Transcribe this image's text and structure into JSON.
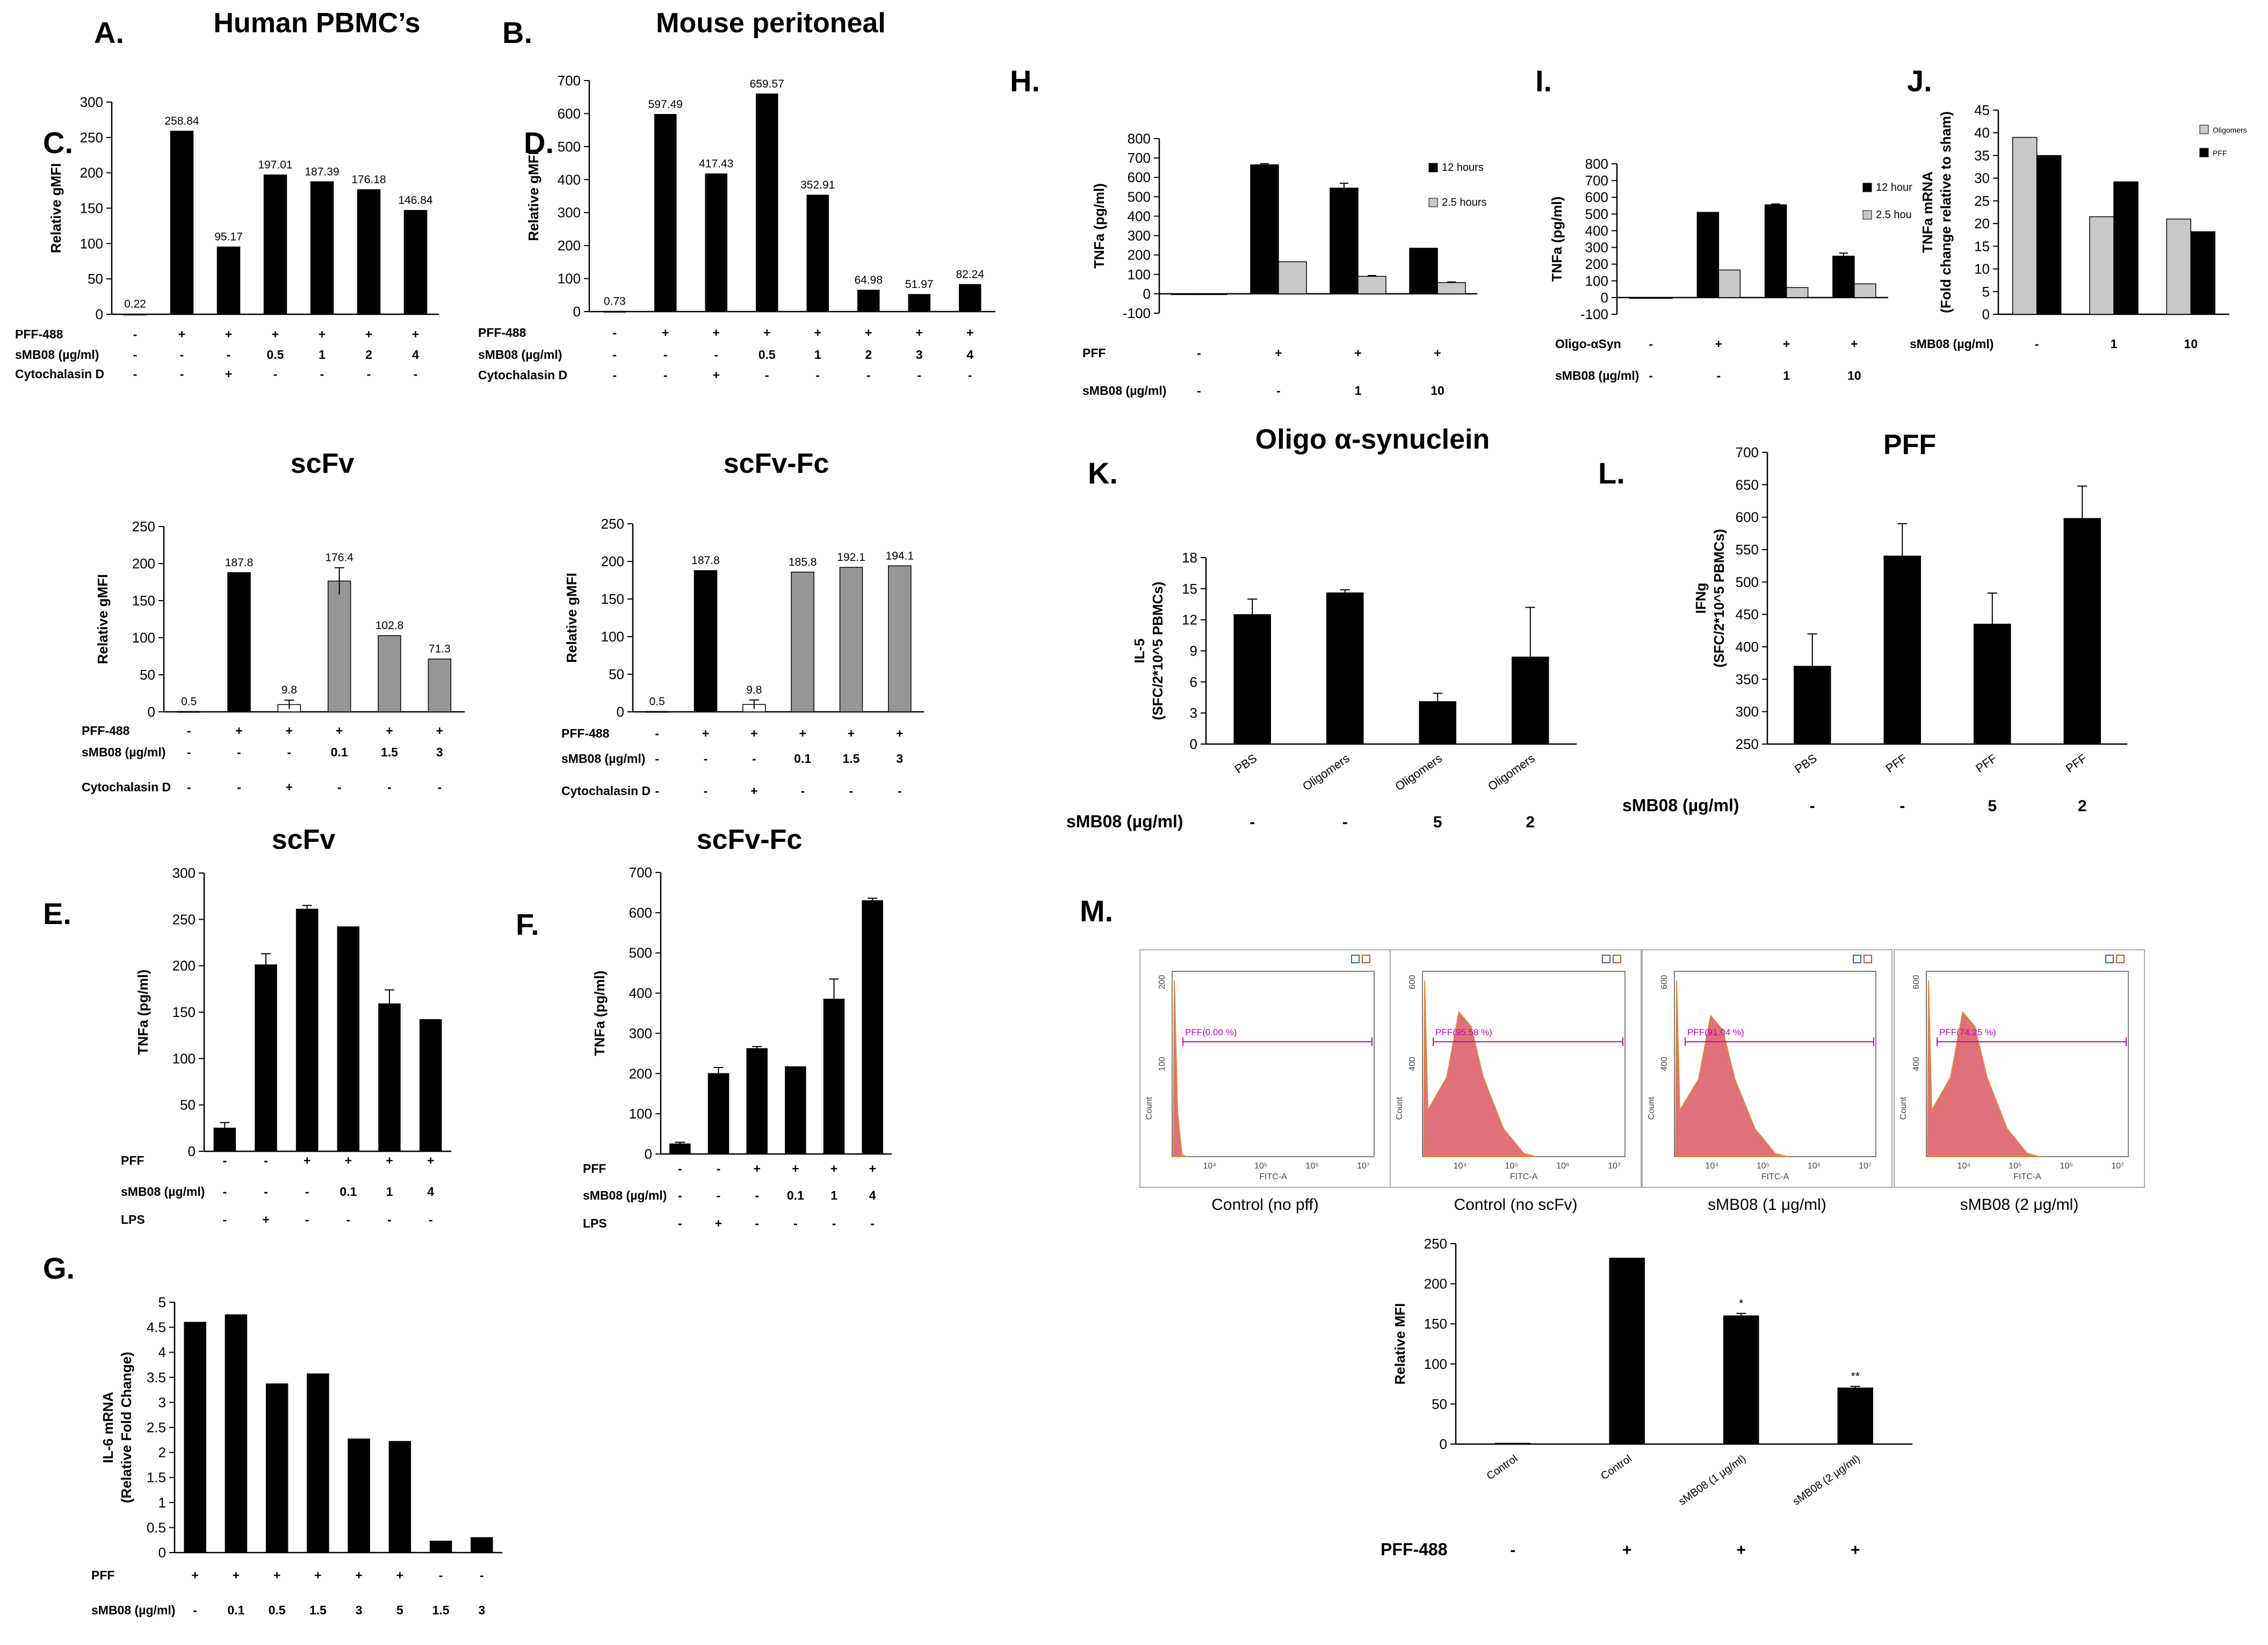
{
  "colors": {
    "black": "#000000",
    "gray": "#969696",
    "lightgray": "#c8c8c8",
    "white": "#ffffff",
    "flow_fill": "#e0707a",
    "flow_edge": "#e08a38",
    "gate": "#c200c2"
  },
  "chart_data": [
    {
      "id": "A",
      "type": "bar",
      "panel_label": "A.",
      "title": "Human PBMC’s",
      "ylabel": "Relative gMFI",
      "ylim": [
        0,
        300
      ],
      "yticks": [
        0,
        50,
        100,
        150,
        200,
        250,
        300
      ],
      "values": [
        0.22,
        258.84,
        95.17,
        197.01,
        187.39,
        176.18,
        146.84
      ],
      "data_labels": [
        "0.22",
        "258.84",
        "95.17",
        "197.01",
        "187.39",
        "176.18",
        "146.84"
      ],
      "bar_colors": [
        "black",
        "black",
        "black",
        "black",
        "black",
        "black",
        "black"
      ],
      "conditions": [
        {
          "label": "PFF-488",
          "values": [
            "-",
            "+",
            "+",
            "+",
            "+",
            "+",
            "+"
          ]
        },
        {
          "label": "sMB08 (µg/ml)",
          "values": [
            "-",
            "-",
            "-",
            "0.5",
            "1",
            "2",
            "4"
          ]
        },
        {
          "label": "Cytochalasin D",
          "values": [
            "-",
            "-",
            "+",
            "-",
            "-",
            "-",
            "-"
          ]
        }
      ]
    },
    {
      "id": "B",
      "type": "bar",
      "panel_label": "B.",
      "title": "Mouse peritoneal",
      "ylabel": "Relative gMFI",
      "ylim": [
        0,
        700
      ],
      "yticks": [
        0,
        100,
        200,
        300,
        400,
        500,
        600,
        700
      ],
      "values": [
        0.73,
        597.49,
        417.43,
        659.57,
        352.91,
        64.98,
        51.97,
        82.24
      ],
      "data_labels": [
        "0.73",
        "597.49",
        "417.43",
        "659.57",
        "352.91",
        "64.98",
        "51.97",
        "82.24"
      ],
      "bar_colors": [
        "black",
        "black",
        "black",
        "black",
        "black",
        "black",
        "black",
        "black"
      ],
      "conditions": [
        {
          "label": "PFF-488",
          "values": [
            "-",
            "+",
            "+",
            "+",
            "+",
            "+",
            "+",
            "+"
          ]
        },
        {
          "label": "sMB08 (µg/ml)",
          "values": [
            "-",
            "-",
            "-",
            "0.5",
            "1",
            "2",
            "3",
            "4"
          ]
        },
        {
          "label": "Cytochalasin D",
          "values": [
            "-",
            "-",
            "+",
            "-",
            "-",
            "-",
            "-",
            "-"
          ]
        }
      ]
    },
    {
      "id": "C",
      "type": "bar",
      "panel_label": "C.",
      "title": "scFv",
      "ylabel": "Relative gMFI",
      "ylim": [
        0,
        250
      ],
      "yticks": [
        0,
        50,
        100,
        150,
        200,
        250
      ],
      "values": [
        0.5,
        187.8,
        9.8,
        176.4,
        102.8,
        71.3
      ],
      "errors": [
        0,
        0,
        6,
        18,
        0,
        0
      ],
      "data_labels": [
        "0.5",
        "187.8",
        "9.8",
        "176.4",
        "102.8",
        "71.3"
      ],
      "bar_colors": [
        "black",
        "black",
        "white",
        "gray",
        "gray",
        "gray"
      ],
      "conditions": [
        {
          "label": "PFF-488",
          "values": [
            "-",
            "+",
            "+",
            "+",
            "+",
            "+"
          ]
        },
        {
          "label": "sMB08 (µg/ml)",
          "values": [
            "-",
            "-",
            "-",
            "0.1",
            "1.5",
            "3"
          ]
        },
        {
          "label": "Cytochalasin D",
          "values": [
            "-",
            "-",
            "+",
            "-",
            "-",
            "-"
          ]
        }
      ]
    },
    {
      "id": "D",
      "type": "bar",
      "panel_label": "D.",
      "title": "scFv-Fc",
      "ylabel": "Relative gMFI",
      "ylim": [
        0,
        250
      ],
      "yticks": [
        0,
        50,
        100,
        150,
        200,
        250
      ],
      "values": [
        0.5,
        187.8,
        9.8,
        185.8,
        192.1,
        194.1
      ],
      "errors": [
        0,
        0,
        6,
        0,
        0,
        0
      ],
      "data_labels": [
        "0.5",
        "187.8",
        "9.8",
        "185.8",
        "192.1",
        "194.1"
      ],
      "bar_colors": [
        "black",
        "black",
        "white",
        "gray",
        "gray",
        "gray"
      ],
      "conditions": [
        {
          "label": "PFF-488",
          "values": [
            "-",
            "+",
            "+",
            "+",
            "+",
            "+"
          ]
        },
        {
          "label": "sMB08 (µg/ml)",
          "values": [
            "-",
            "-",
            "-",
            "0.1",
            "1.5",
            "3"
          ]
        },
        {
          "label": "Cytochalasin D",
          "values": [
            "-",
            "-",
            "+",
            "-",
            "-",
            "-"
          ]
        }
      ]
    },
    {
      "id": "E",
      "type": "bar",
      "panel_label": "E.",
      "title": "scFv",
      "ylabel": "TNFa (pg/ml)",
      "ylim": [
        0,
        300
      ],
      "yticks": [
        0,
        50,
        100,
        150,
        200,
        250,
        300
      ],
      "values": [
        25,
        201,
        261,
        242,
        159,
        142
      ],
      "errors": [
        6,
        12,
        4,
        0,
        15,
        0
      ],
      "bar_colors": [
        "black",
        "black",
        "black",
        "black",
        "black",
        "black"
      ],
      "conditions": [
        {
          "label": "PFF",
          "values": [
            "-",
            "-",
            "+",
            "+",
            "+",
            "+"
          ]
        },
        {
          "label": "sMB08 (µg/ml)",
          "values": [
            "-",
            "-",
            "-",
            "0.1",
            "1",
            "4"
          ]
        },
        {
          "label": "LPS",
          "values": [
            "-",
            "+",
            "-",
            "-",
            "-",
            "-"
          ]
        }
      ]
    },
    {
      "id": "F",
      "type": "bar",
      "panel_label": "F.",
      "title": "scFv-Fc",
      "ylabel": "TNFa (pg/ml)",
      "ylim": [
        0,
        700
      ],
      "yticks": [
        0,
        100,
        200,
        300,
        400,
        500,
        600,
        700
      ],
      "values": [
        25,
        200,
        262,
        217,
        385,
        630
      ],
      "errors": [
        4,
        15,
        5,
        0,
        50,
        6
      ],
      "bar_colors": [
        "black",
        "black",
        "black",
        "black",
        "black",
        "black"
      ],
      "conditions": [
        {
          "label": "PFF",
          "values": [
            "-",
            "-",
            "+",
            "+",
            "+",
            "+"
          ]
        },
        {
          "label": "sMB08 (µg/ml)",
          "values": [
            "-",
            "-",
            "-",
            "0.1",
            "1",
            "4"
          ]
        },
        {
          "label": "LPS",
          "values": [
            "-",
            "+",
            "-",
            "-",
            "-",
            "-"
          ]
        }
      ]
    },
    {
      "id": "G",
      "type": "bar",
      "panel_label": "G.",
      "title": "",
      "ylabel": "IL-6 mRNA",
      "ylabel2": "(Relative  Fold Change)",
      "ylim": [
        0,
        5
      ],
      "yticks": [
        0,
        0.5,
        1,
        1.5,
        2,
        2.5,
        3,
        3.5,
        4,
        4.5,
        5
      ],
      "values": [
        4.6,
        4.75,
        3.37,
        3.57,
        2.27,
        2.22,
        0.23,
        0.3
      ],
      "bar_colors": [
        "black",
        "black",
        "black",
        "black",
        "black",
        "black",
        "black",
        "black"
      ],
      "conditions": [
        {
          "label": "PFF",
          "values": [
            "+",
            "+",
            "+",
            "+",
            "+",
            "+",
            "-",
            "-"
          ]
        },
        {
          "label": "sMB08 (µg/ml)",
          "values": [
            "-",
            "0.1",
            "0.5",
            "1.5",
            "3",
            "5",
            "1.5",
            "3"
          ]
        }
      ]
    },
    {
      "id": "H",
      "type": "bar",
      "panel_label": "H.",
      "title": "",
      "ylabel": "TNFa (pg/ml)",
      "ylim": [
        -100,
        800
      ],
      "yticks": [
        -100,
        0,
        100,
        200,
        300,
        400,
        500,
        600,
        700,
        800
      ],
      "series": [
        {
          "name": "12 hours",
          "color": "black",
          "values": [
            0,
            665,
            545,
            235
          ],
          "errors": [
            0,
            6,
            25,
            0
          ]
        },
        {
          "name": "2.5 hours",
          "color": "lightgray",
          "values": [
            0,
            165,
            90,
            58
          ],
          "errors": [
            0,
            0,
            4,
            3
          ]
        }
      ],
      "conditions": [
        {
          "label": "PFF",
          "values": [
            "-",
            "+",
            "+",
            "+"
          ]
        },
        {
          "label": "sMB08 (µg/ml)",
          "values": [
            "-",
            "-",
            "1",
            "10"
          ]
        }
      ]
    },
    {
      "id": "I",
      "type": "bar",
      "panel_label": "I.",
      "title": "",
      "ylabel": "TNFa (pg/ml)",
      "ylim": [
        -100,
        800
      ],
      "yticks": [
        -100,
        0,
        100,
        200,
        300,
        400,
        500,
        600,
        700,
        800
      ],
      "series": [
        {
          "name": "12 hour",
          "color": "black",
          "values": [
            0,
            510,
            555,
            248
          ],
          "errors": [
            0,
            0,
            5,
            18
          ]
        },
        {
          "name": "2.5 hou",
          "color": "lightgray",
          "values": [
            0,
            165,
            60,
            82
          ],
          "errors": [
            0,
            0,
            0,
            0
          ]
        }
      ],
      "conditions": [
        {
          "label": "Oligo-αSyn",
          "values": [
            "-",
            "+",
            "+",
            "+"
          ]
        },
        {
          "label": "sMB08 (µg/ml)",
          "values": [
            "-",
            "-",
            "1",
            "10"
          ]
        }
      ]
    },
    {
      "id": "J",
      "type": "bar",
      "panel_label": "J.",
      "title": "",
      "ylabel": "TNFa mRNA",
      "ylabel2": "(Fold change relative to sham)",
      "ylim": [
        0,
        45
      ],
      "yticks": [
        0,
        5,
        10,
        15,
        20,
        25,
        30,
        35,
        40,
        45
      ],
      "series": [
        {
          "name": "Oligomers",
          "color": "lightgray",
          "values": [
            39,
            21.5,
            21
          ]
        },
        {
          "name": "PFF",
          "color": "black",
          "values": [
            35,
            29.2,
            18.2
          ]
        }
      ],
      "conditions": [
        {
          "label": "sMB08 (µg/ml)",
          "values": [
            "-",
            "1",
            "10"
          ]
        }
      ]
    },
    {
      "id": "K",
      "type": "bar",
      "panel_label": "K.",
      "title": "Oligo α-synuclein",
      "ylabel": "IL-5",
      "ylabel2": "(SFC/2*10^5 PBMCs)",
      "ylim": [
        0,
        18
      ],
      "yticks": [
        0,
        3,
        6,
        9,
        12,
        15,
        18
      ],
      "categories": [
        "PBS",
        "Oligomers",
        "Oligomers",
        "Oligomers"
      ],
      "values": [
        12.5,
        14.6,
        4.1,
        8.4
      ],
      "errors": [
        1.5,
        0.3,
        0.8,
        4.8
      ],
      "bar_colors": [
        "black",
        "black",
        "black",
        "black"
      ],
      "conditions": [
        {
          "label": "sMB08 (µg/ml)",
          "values": [
            "-",
            "-",
            "5",
            "2"
          ]
        }
      ]
    },
    {
      "id": "L",
      "type": "bar",
      "panel_label": "L.",
      "title": "PFF",
      "ylabel": "IFNg",
      "ylabel2": "(SFC/2*10^5 PBMCs)",
      "ylim": [
        250,
        700
      ],
      "yticks": [
        250,
        300,
        350,
        400,
        450,
        500,
        550,
        600,
        650,
        700
      ],
      "categories": [
        "PBS",
        "PFF",
        "PFF",
        "PFF"
      ],
      "values": [
        370,
        540,
        435,
        598
      ],
      "errors": [
        50,
        50,
        48,
        50
      ],
      "bar_colors": [
        "black",
        "black",
        "black",
        "black"
      ],
      "conditions": [
        {
          "label": "sMB08 (µg/ml)",
          "values": [
            "-",
            "-",
            "5",
            "2"
          ]
        }
      ]
    },
    {
      "id": "M",
      "type": "bar",
      "panel_label": "M.",
      "title": "",
      "ylabel": "Relative MFI",
      "ylim": [
        0,
        250
      ],
      "yticks": [
        0,
        50,
        100,
        150,
        200,
        250
      ],
      "categories": [
        "Control",
        "Control",
        "sMB08 (1 µg/ml)",
        "sMB08 (2 µg/ml)"
      ],
      "values": [
        1,
        232,
        160,
        70
      ],
      "errors": [
        0,
        0,
        3,
        2
      ],
      "significance": [
        "",
        "",
        "*",
        "**"
      ],
      "bar_colors": [
        "black",
        "black",
        "black",
        "black"
      ],
      "conditions": [
        {
          "label": "PFF-488",
          "values": [
            "-",
            "+",
            "+",
            "+"
          ]
        }
      ],
      "flow_histograms": [
        {
          "caption": "Control (no pff)",
          "gate": "PFF(0.00 %)",
          "ymax_label": "200",
          "ymid_label": "100",
          "mode": "none"
        },
        {
          "caption": "Control (no scFv)",
          "gate": "PFF(95.58 %)",
          "ymax_label": "600",
          "ymid_label": "400",
          "mode": "big"
        },
        {
          "caption": "sMB08 (1 μg/ml)",
          "gate": "PFF(91.04 %)",
          "ymax_label": "600",
          "ymid_label": "400",
          "mode": "mid"
        },
        {
          "caption": "sMB08 (2 μg/ml)",
          "gate": "PFF(74.25 %)",
          "ymax_label": "600",
          "ymid_label": "400",
          "mode": "low"
        }
      ],
      "flow_axis": {
        "ylabel": "Count",
        "xlabel": "FITC-A",
        "xticks": [
          "10⁴",
          "10⁵",
          "10⁶",
          "10⁷"
        ]
      }
    }
  ]
}
